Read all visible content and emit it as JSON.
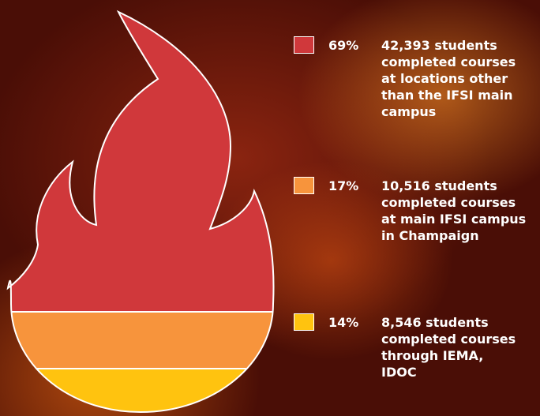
{
  "items": [
    {
      "percent": "69%",
      "color": "#d0383b",
      "lines": [
        "42,393 students",
        "completed courses",
        "at locations other",
        "than the IFSI main",
        "campus"
      ]
    },
    {
      "percent": "17%",
      "color": "#f7943c",
      "lines": [
        "10,516 students",
        "completed courses",
        "at main IFSI campus",
        "in Champaign"
      ]
    },
    {
      "percent": "14%",
      "color": "#ffc30f",
      "lines": [
        "8,546 students",
        "completed courses",
        "through IEMA,",
        "IDOC"
      ]
    }
  ]
}
